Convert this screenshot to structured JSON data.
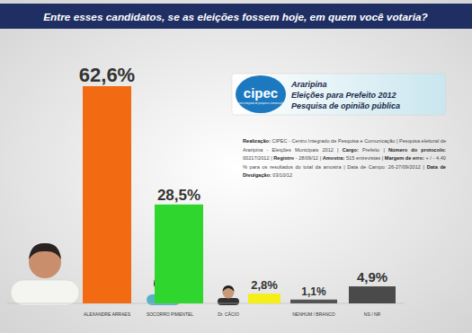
{
  "chart_data": {
    "type": "bar",
    "title": "Entre esses candidatos, se as eleições fossem hoje, em quem você votaria?",
    "categories": [
      "ALEXANDRE ARRAES",
      "SOCORRO PIMENTEL",
      "Dr. CÁCIO",
      "NENHUM / BRANCO",
      "NS / NR"
    ],
    "values": [
      62.6,
      28.5,
      2.8,
      1.1,
      4.9
    ],
    "value_labels": [
      "62,6%",
      "28,5%",
      "2,8%",
      "1,1%",
      "4,9%"
    ],
    "colors": [
      "#f26b12",
      "#2ed62e",
      "#f5ee17",
      "#555555",
      "#4a4a4a"
    ],
    "ylim": [
      0,
      62.6
    ],
    "data_labels": true,
    "tick_labels": "x",
    "logo": "cipec",
    "logo_tagline": "centro integrado de pesquisa e comunicação",
    "annotations": [
      "Araripina",
      "Eleições para Prefeito 2012",
      "Pesquisa de opinião pública"
    ],
    "notes": [
      {
        "label": "Realização:",
        "text": "CIPEC - Centro Integrado de Pesquisa e Comunicação | Pesquisa eleitoral de Araripina - Eleições Municipais 2012 |"
      },
      {
        "label": "Cargo:",
        "text": "Prefeito |"
      },
      {
        "label": "Número do protocolo:",
        "text": "00217/2012 |"
      },
      {
        "label": "Registro",
        "text": "- 28/09/12 |"
      },
      {
        "label": "Amostra:",
        "text": "515 entrevistas |"
      },
      {
        "label": "Margem de erro:",
        "text": "+ / - 4,40 % para os resultados do total da amostra | Data de Campo: 26-27/09/2012 |"
      },
      {
        "label": "Data de Divulgação:",
        "text": "03/10/12"
      }
    ]
  }
}
